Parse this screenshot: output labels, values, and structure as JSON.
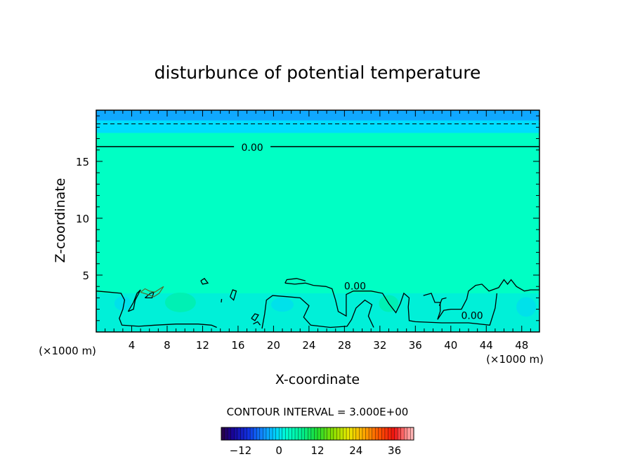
{
  "chart_data": {
    "type": "heatmap",
    "title": "disturbunce of potential temperature",
    "xlabel": "X-coordinate",
    "ylabel": "Z-coordinate",
    "x_units_left": "(×1000 m)",
    "x_units_right": "(×1000 m)",
    "xlim": [
      0,
      50
    ],
    "ylim": [
      0,
      19.5
    ],
    "x_ticks": [
      4,
      8,
      12,
      16,
      20,
      24,
      28,
      32,
      36,
      40,
      44,
      48
    ],
    "y_ticks": [
      5,
      10,
      15
    ],
    "contour_interval_label": "CONTOUR INTERVAL = 3.000E+00",
    "contour_labels": [
      {
        "text": "0.00",
        "x": 17.6,
        "z": 16.3
      },
      {
        "text": "0.00",
        "x": 29.2,
        "z": 4.1
      },
      {
        "text": "0.00",
        "x": 42.4,
        "z": 1.5
      }
    ],
    "zero_contour_level": 16.3,
    "dashed_contour_level": 18.3,
    "colorbar": {
      "min": -18,
      "max": 42,
      "tick_values": [
        -12,
        0,
        12,
        24,
        36
      ],
      "tick_labels": [
        "−12",
        "0",
        "12",
        "24",
        "36"
      ]
    },
    "colors": {
      "top_band": "#10a8ff",
      "upper_band": "#00ddff",
      "field": "#00ffc4",
      "lower_layer": "#00f0d8",
      "warm_patch": "#00f0a8",
      "cool_patch": "#00dcf0"
    }
  }
}
